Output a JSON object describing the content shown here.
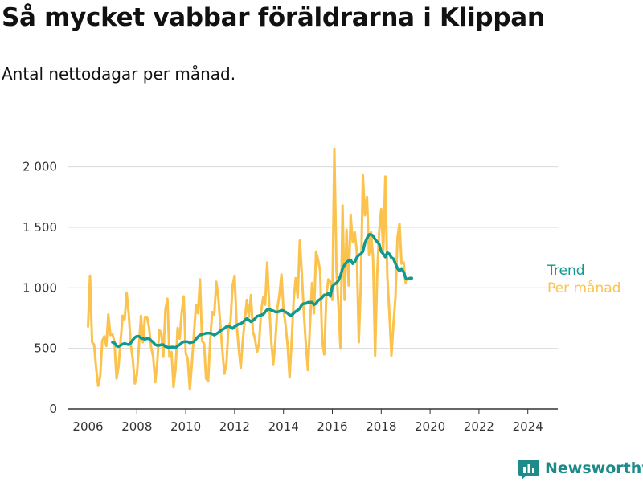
{
  "title": "Så mycket vabbar föräldrarna i Klippan",
  "subtitle": "Antal nettodagar per månad.",
  "brand": {
    "name": "Newsworthy",
    "icon": "newsworthy-logo-icon"
  },
  "colors": {
    "trend": "#11998e",
    "monthly": "#fcc24e",
    "grid": "#d9d9d9",
    "axis": "#333333",
    "brand": "#1f8a8a"
  },
  "chart_data": {
    "type": "line",
    "x_start": "2006-01",
    "x_step": "month",
    "ylim": [
      0,
      2150
    ],
    "yticks": [
      0,
      500,
      1000,
      1500,
      2000
    ],
    "ytick_labels": [
      "0",
      "500",
      "1 000",
      "1 500",
      "2 000"
    ],
    "xticks": [
      "2006",
      "2008",
      "2010",
      "2012",
      "2014",
      "2016",
      "2018",
      "2020",
      "2022",
      "2024"
    ],
    "grid": true,
    "legend": "inline-right",
    "series": [
      {
        "name": "Per månad",
        "color": "#fcc24e",
        "values": [
          680,
          1100,
          550,
          530,
          340,
          190,
          270,
          560,
          600,
          520,
          780,
          610,
          620,
          550,
          250,
          350,
          560,
          770,
          740,
          960,
          780,
          530,
          410,
          210,
          280,
          510,
          770,
          550,
          760,
          760,
          670,
          510,
          430,
          220,
          380,
          650,
          630,
          430,
          820,
          910,
          430,
          470,
          180,
          330,
          670,
          580,
          790,
          930,
          460,
          410,
          160,
          370,
          610,
          860,
          790,
          1070,
          560,
          540,
          250,
          230,
          560,
          800,
          780,
          1050,
          920,
          690,
          480,
          290,
          380,
          680,
          720,
          1020,
          1100,
          700,
          500,
          340,
          560,
          740,
          900,
          760,
          940,
          640,
          580,
          470,
          540,
          800,
          920,
          860,
          1210,
          850,
          560,
          370,
          560,
          830,
          940,
          1110,
          820,
          700,
          530,
          260,
          560,
          900,
          1080,
          920,
          1390,
          1120,
          800,
          530,
          320,
          680,
          1040,
          790,
          1300,
          1230,
          1140,
          560,
          450,
          920,
          1070,
          1050,
          900,
          2150,
          1150,
          850,
          500,
          1680,
          900,
          1480,
          1020,
          1600,
          1380,
          1460,
          1300,
          550,
          1050,
          1930,
          1600,
          1750,
          1270,
          1460,
          1240,
          440,
          1100,
          1470,
          1650,
          1300,
          1920,
          1100,
          800,
          440,
          700,
          920,
          1420,
          1530,
          1200,
          1210,
          1040
        ]
      },
      {
        "name": "Trend",
        "color": "#11998e",
        "start_index": 12,
        "values": [
          550,
          545,
          520,
          515,
          525,
          535,
          540,
          535,
          530,
          545,
          570,
          590,
          600,
          600,
          585,
          580,
          575,
          580,
          580,
          565,
          550,
          530,
          525,
          525,
          530,
          530,
          515,
          510,
          505,
          510,
          510,
          505,
          520,
          530,
          545,
          555,
          555,
          555,
          545,
          550,
          555,
          575,
          595,
          610,
          615,
          620,
          625,
          625,
          625,
          620,
          610,
          620,
          630,
          645,
          655,
          665,
          680,
          685,
          675,
          665,
          680,
          690,
          700,
          705,
          715,
          735,
          745,
          735,
          720,
          730,
          745,
          765,
          770,
          775,
          780,
          800,
          820,
          825,
          815,
          810,
          800,
          800,
          805,
          815,
          810,
          800,
          790,
          775,
          775,
          790,
          805,
          815,
          830,
          860,
          870,
          870,
          880,
          880,
          880,
          860,
          870,
          895,
          905,
          920,
          940,
          940,
          955,
          930,
          1010,
          1030,
          1040,
          1060,
          1100,
          1160,
          1190,
          1210,
          1225,
          1230,
          1200,
          1215,
          1250,
          1270,
          1280,
          1300,
          1370,
          1410,
          1440,
          1440,
          1430,
          1400,
          1380,
          1360,
          1300,
          1280,
          1255,
          1290,
          1280,
          1250,
          1240,
          1200,
          1160,
          1140,
          1160,
          1130,
          1080,
          1070,
          1080,
          1080
        ]
      }
    ]
  }
}
